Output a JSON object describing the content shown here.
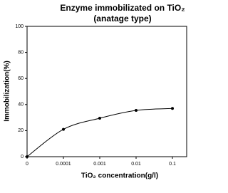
{
  "chart_data": {
    "type": "line",
    "title": "Enzyme immobilizated on TiO₂",
    "subtitle": "(anatage type)",
    "x_label": "TiO₂ concentration(g/l)",
    "y_label": "Immobilization(%)",
    "categories": [
      "0",
      "0.0001",
      "0.001",
      "0.01",
      "0.1"
    ],
    "values": [
      0,
      21,
      29.5,
      35.5,
      37
    ],
    "color": "#000000",
    "ylim": [
      0,
      100
    ],
    "yticks": [
      0,
      20,
      40,
      60,
      80,
      100
    ],
    "grid": false
  }
}
